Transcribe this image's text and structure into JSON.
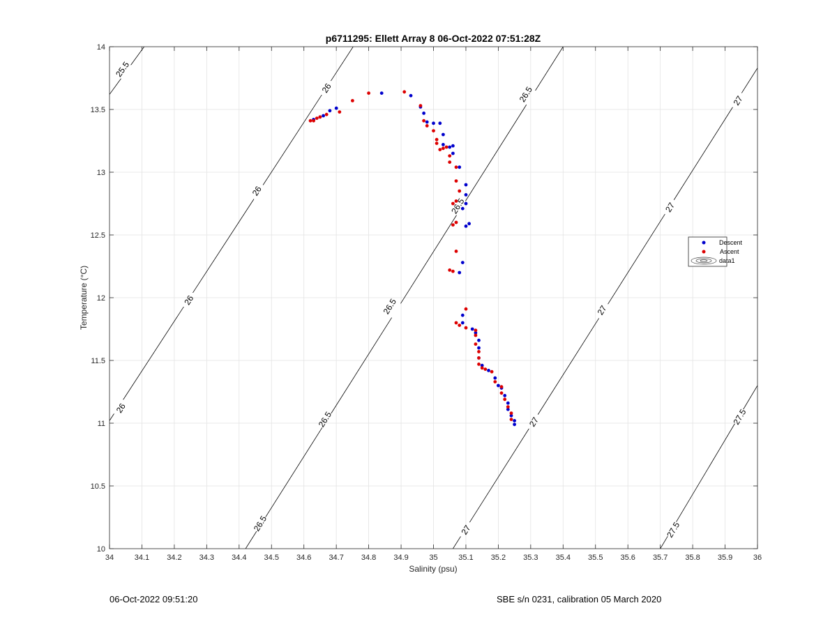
{
  "chart_data": {
    "type": "scatter",
    "title": "p6711295: Ellett Array 8 06-Oct-2022 07:51:28Z",
    "xlabel": "Salinity (psu)",
    "ylabel": "Temperature (°C)",
    "xlim": [
      34,
      36
    ],
    "ylim": [
      10,
      14
    ],
    "x_ticks": [
      "34",
      "34.1",
      "34.2",
      "34.3",
      "34.4",
      "34.5",
      "34.6",
      "34.7",
      "34.8",
      "34.9",
      "35",
      "35.1",
      "35.2",
      "35.3",
      "35.4",
      "35.5",
      "35.6",
      "35.7",
      "35.8",
      "35.9",
      "36"
    ],
    "y_ticks": [
      "10",
      "10.5",
      "11",
      "11.5",
      "12",
      "12.5",
      "13",
      "13.5",
      "14"
    ],
    "grid": true,
    "legend": {
      "placement": "right",
      "entries": [
        "Descent",
        "Ascent",
        "data1"
      ]
    },
    "colors": {
      "Descent": "#0000cc",
      "Ascent": "#dd0000",
      "contour": "#000000",
      "grid": "#e3e3e3"
    },
    "contours": [
      {
        "level": "25.5",
        "points": [
          [
            34,
            13.62
          ],
          [
            34.107,
            14
          ]
        ],
        "labels": [
          {
            "x": 34.04,
            "y": 13.82
          }
        ]
      },
      {
        "level": "26",
        "points": [
          [
            34,
            11.02
          ],
          [
            34.752,
            14
          ]
        ],
        "labels": [
          {
            "x": 34.035,
            "y": 11.12
          },
          {
            "x": 34.245,
            "y": 11.98
          },
          {
            "x": 34.455,
            "y": 12.85
          },
          {
            "x": 34.67,
            "y": 13.67
          }
        ]
      },
      {
        "level": "26.5",
        "points": [
          [
            34.42,
            10
          ],
          [
            35.4,
            14
          ]
        ],
        "labels": [
          {
            "x": 34.465,
            "y": 10.2
          },
          {
            "x": 34.665,
            "y": 11.03
          },
          {
            "x": 34.865,
            "y": 11.93
          },
          {
            "x": 35.075,
            "y": 12.73
          },
          {
            "x": 35.285,
            "y": 13.62
          }
        ]
      },
      {
        "level": "27",
        "points": [
          [
            35.06,
            10
          ],
          [
            36,
            13.83
          ]
        ],
        "labels": [
          {
            "x": 35.1,
            "y": 10.15
          },
          {
            "x": 35.31,
            "y": 11.01
          },
          {
            "x": 35.52,
            "y": 11.9
          },
          {
            "x": 35.73,
            "y": 12.72
          },
          {
            "x": 35.94,
            "y": 13.57
          }
        ]
      },
      {
        "level": "27.5",
        "points": [
          [
            35.7,
            10
          ],
          [
            36,
            11.3
          ]
        ],
        "labels": [
          {
            "x": 35.74,
            "y": 10.15
          },
          {
            "x": 35.945,
            "y": 11.05
          }
        ]
      }
    ],
    "series": [
      {
        "name": "Descent",
        "points": [
          [
            34.63,
            13.42
          ],
          [
            34.65,
            13.44
          ],
          [
            34.66,
            13.45
          ],
          [
            34.68,
            13.49
          ],
          [
            34.7,
            13.51
          ],
          [
            34.84,
            13.63
          ],
          [
            34.93,
            13.61
          ],
          [
            34.96,
            13.52
          ],
          [
            34.97,
            13.47
          ],
          [
            34.98,
            13.4
          ],
          [
            35.0,
            13.39
          ],
          [
            35.02,
            13.39
          ],
          [
            35.03,
            13.3
          ],
          [
            35.03,
            13.22
          ],
          [
            35.05,
            13.2
          ],
          [
            35.06,
            13.21
          ],
          [
            35.06,
            13.15
          ],
          [
            35.08,
            13.04
          ],
          [
            35.1,
            12.9
          ],
          [
            35.1,
            12.82
          ],
          [
            35.1,
            12.75
          ],
          [
            35.09,
            12.71
          ],
          [
            35.11,
            12.59
          ],
          [
            35.1,
            12.57
          ],
          [
            35.09,
            12.28
          ],
          [
            35.08,
            12.2
          ],
          [
            35.09,
            11.86
          ],
          [
            35.09,
            11.8
          ],
          [
            35.12,
            11.75
          ],
          [
            35.13,
            11.72
          ],
          [
            35.14,
            11.66
          ],
          [
            35.14,
            11.6
          ],
          [
            35.14,
            11.52
          ],
          [
            35.15,
            11.46
          ],
          [
            35.17,
            11.42
          ],
          [
            35.19,
            11.36
          ],
          [
            35.2,
            11.3
          ],
          [
            35.21,
            11.28
          ],
          [
            35.22,
            11.22
          ],
          [
            35.23,
            11.16
          ],
          [
            35.23,
            11.11
          ],
          [
            35.24,
            11.06
          ],
          [
            35.25,
            11.02
          ],
          [
            35.25,
            10.99
          ]
        ]
      },
      {
        "name": "Ascent",
        "points": [
          [
            34.62,
            13.41
          ],
          [
            34.63,
            13.41
          ],
          [
            34.64,
            13.43
          ],
          [
            34.65,
            13.44
          ],
          [
            34.67,
            13.46
          ],
          [
            34.71,
            13.48
          ],
          [
            34.75,
            13.57
          ],
          [
            34.8,
            13.63
          ],
          [
            34.91,
            13.64
          ],
          [
            34.96,
            13.53
          ],
          [
            34.97,
            13.41
          ],
          [
            34.98,
            13.37
          ],
          [
            35.0,
            13.33
          ],
          [
            35.01,
            13.26
          ],
          [
            35.01,
            13.23
          ],
          [
            35.02,
            13.18
          ],
          [
            35.03,
            13.19
          ],
          [
            35.04,
            13.2
          ],
          [
            35.05,
            13.13
          ],
          [
            35.05,
            13.08
          ],
          [
            35.07,
            13.04
          ],
          [
            35.07,
            12.93
          ],
          [
            35.08,
            12.85
          ],
          [
            35.07,
            12.77
          ],
          [
            35.06,
            12.75
          ],
          [
            35.07,
            12.6
          ],
          [
            35.06,
            12.58
          ],
          [
            35.07,
            12.37
          ],
          [
            35.05,
            12.22
          ],
          [
            35.06,
            12.21
          ],
          [
            35.07,
            11.8
          ],
          [
            35.08,
            11.78
          ],
          [
            35.1,
            11.91
          ],
          [
            35.1,
            11.76
          ],
          [
            35.13,
            11.74
          ],
          [
            35.13,
            11.7
          ],
          [
            35.13,
            11.63
          ],
          [
            35.14,
            11.57
          ],
          [
            35.14,
            11.52
          ],
          [
            35.14,
            11.47
          ],
          [
            35.15,
            11.44
          ],
          [
            35.16,
            11.43
          ],
          [
            35.18,
            11.41
          ],
          [
            35.19,
            11.33
          ],
          [
            35.21,
            11.29
          ],
          [
            35.21,
            11.24
          ],
          [
            35.22,
            11.19
          ],
          [
            35.23,
            11.13
          ],
          [
            35.24,
            11.08
          ],
          [
            35.24,
            11.03
          ]
        ]
      }
    ]
  },
  "footer": {
    "left": "06-Oct-2022 09:51:20",
    "right": "SBE s/n 0231, calibration 05 March 2020"
  }
}
